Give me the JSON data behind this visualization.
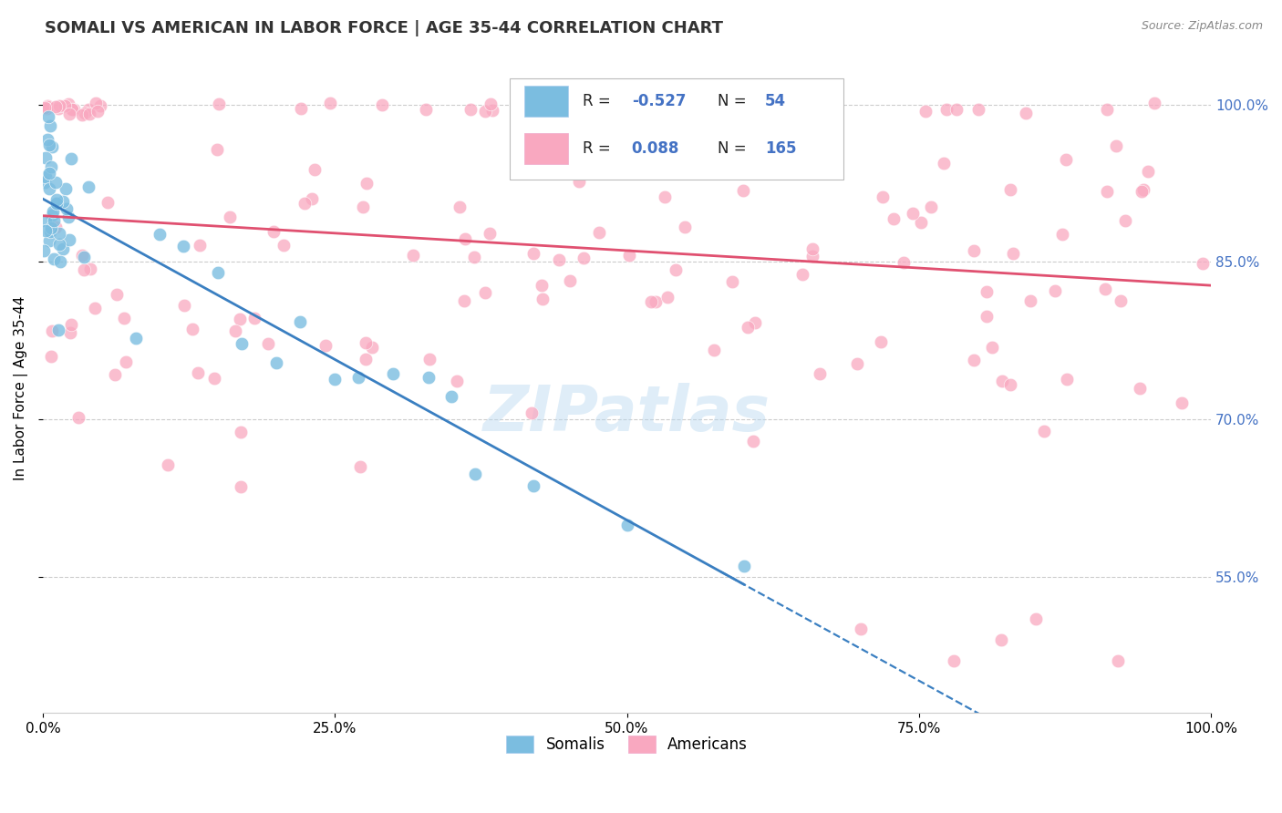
{
  "title": "SOMALI VS AMERICAN IN LABOR FORCE | AGE 35-44 CORRELATION CHART",
  "source": "Source: ZipAtlas.com",
  "ylabel": "In Labor Force | Age 35-44",
  "xlim": [
    0.0,
    1.0
  ],
  "ylim": [
    0.42,
    1.04
  ],
  "yticks": [
    0.55,
    0.7,
    0.85,
    1.0
  ],
  "somali_color": "#7bbde0",
  "american_color": "#f9a8c0",
  "somali_R": -0.527,
  "somali_N": 54,
  "american_R": 0.088,
  "american_N": 165,
  "legend_label_somali": "Somalis",
  "legend_label_american": "Americans",
  "background_color": "#ffffff",
  "grid_color": "#cccccc",
  "watermark_text": "ZIPatlas",
  "title_fontsize": 13,
  "source_fontsize": 9,
  "somali_line_color": "#3a7fc1",
  "american_line_color": "#e05070",
  "legend_text_blue": "#4472c4",
  "legend_text_black": "#222222"
}
